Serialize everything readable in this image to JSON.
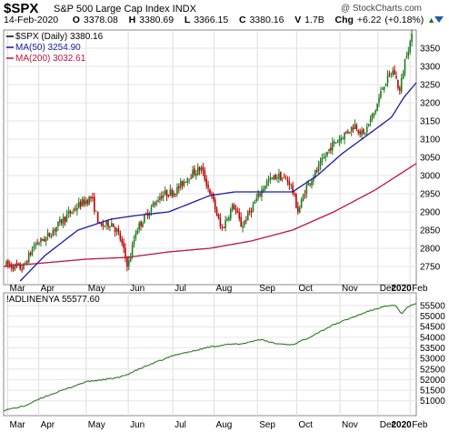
{
  "header": {
    "symbol": "$SPX",
    "name": "S&P 500 Large Cap Index  INDX",
    "watermark": "@ StockCharts.com",
    "date": "14-Feb-2020",
    "o_label": "O",
    "o_value": "3378.08",
    "h_label": "H",
    "h_value": "3380.69",
    "l_label": "L",
    "l_value": "3366.15",
    "c_label": "C",
    "c_value": "3380.16",
    "v_label": "V",
    "v_value": "1.7B",
    "chg_label": "Chg",
    "chg_value": "+6.22 (+0.18%)",
    "chg_arrow": "▲",
    "scroll_icon": "chevron-down-icon",
    "accent": "#1b5fa8"
  },
  "chart_data": [
    {
      "type": "candlestick",
      "legend": [
        {
          "label": "$SPX (Daily) 3380.16",
          "color": "#000000"
        },
        {
          "label": "MA(50) 3254.90",
          "color": "#1a1aa6"
        },
        {
          "label": "MA(200) 3032.61",
          "color": "#c0143c"
        }
      ],
      "ylim": [
        2700,
        3400
      ],
      "y_ticks": [
        "2750",
        "2800",
        "2850",
        "2900",
        "2950",
        "3000",
        "3050",
        "3100",
        "3150",
        "3200",
        "3250",
        "3300",
        "3350"
      ],
      "up_color": "#1f7a1f",
      "down_color": "#c00000",
      "x_months": [
        {
          "label": "Mar",
          "t": 0.01,
          "bold": false
        },
        {
          "label": "Apr",
          "t": 0.085,
          "bold": false
        },
        {
          "label": "May",
          "t": 0.2,
          "bold": false
        },
        {
          "label": "Jun",
          "t": 0.302,
          "bold": false
        },
        {
          "label": "Jul",
          "t": 0.41,
          "bold": false
        },
        {
          "label": "Aug",
          "t": 0.51,
          "bold": false
        },
        {
          "label": "Sep",
          "t": 0.615,
          "bold": false
        },
        {
          "label": "Oct",
          "t": 0.71,
          "bold": false
        },
        {
          "label": "Nov",
          "t": 0.815,
          "bold": false
        },
        {
          "label": "Dec",
          "t": 0.907,
          "bold": false
        },
        {
          "label": "2020",
          "t": 0.935,
          "bold": true
        },
        {
          "label": "Feb",
          "t": 0.985,
          "bold": false
        }
      ],
      "anchors": [
        {
          "t": 0.0,
          "v": 2755
        },
        {
          "t": 0.04,
          "v": 2745
        },
        {
          "t": 0.07,
          "v": 2810
        },
        {
          "t": 0.1,
          "v": 2830
        },
        {
          "t": 0.14,
          "v": 2880
        },
        {
          "t": 0.18,
          "v": 2920
        },
        {
          "t": 0.21,
          "v": 2940
        },
        {
          "t": 0.23,
          "v": 2860
        },
        {
          "t": 0.26,
          "v": 2870
        },
        {
          "t": 0.28,
          "v": 2830
        },
        {
          "t": 0.3,
          "v": 2750
        },
        {
          "t": 0.32,
          "v": 2850
        },
        {
          "t": 0.35,
          "v": 2900
        },
        {
          "t": 0.38,
          "v": 2945
        },
        {
          "t": 0.42,
          "v": 2960
        },
        {
          "t": 0.45,
          "v": 3000
        },
        {
          "t": 0.48,
          "v": 3020
        },
        {
          "t": 0.51,
          "v": 2930
        },
        {
          "t": 0.53,
          "v": 2850
        },
        {
          "t": 0.56,
          "v": 2920
        },
        {
          "t": 0.58,
          "v": 2860
        },
        {
          "t": 0.61,
          "v": 2920
        },
        {
          "t": 0.64,
          "v": 2980
        },
        {
          "t": 0.67,
          "v": 3000
        },
        {
          "t": 0.7,
          "v": 2980
        },
        {
          "t": 0.72,
          "v": 2900
        },
        {
          "t": 0.74,
          "v": 2970
        },
        {
          "t": 0.77,
          "v": 3020
        },
        {
          "t": 0.8,
          "v": 3080
        },
        {
          "t": 0.83,
          "v": 3110
        },
        {
          "t": 0.86,
          "v": 3140
        },
        {
          "t": 0.88,
          "v": 3110
        },
        {
          "t": 0.91,
          "v": 3180
        },
        {
          "t": 0.93,
          "v": 3250
        },
        {
          "t": 0.955,
          "v": 3290
        },
        {
          "t": 0.97,
          "v": 3230
        },
        {
          "t": 0.985,
          "v": 3330
        },
        {
          "t": 1.0,
          "v": 3380
        }
      ],
      "ma50": [
        {
          "t": 0.04,
          "v": 2710
        },
        {
          "t": 0.1,
          "v": 2780
        },
        {
          "t": 0.18,
          "v": 2850
        },
        {
          "t": 0.26,
          "v": 2880
        },
        {
          "t": 0.32,
          "v": 2890
        },
        {
          "t": 0.4,
          "v": 2900
        },
        {
          "t": 0.5,
          "v": 2945
        },
        {
          "t": 0.56,
          "v": 2955
        },
        {
          "t": 0.62,
          "v": 2955
        },
        {
          "t": 0.7,
          "v": 2955
        },
        {
          "t": 0.76,
          "v": 3000
        },
        {
          "t": 0.82,
          "v": 3060
        },
        {
          "t": 0.88,
          "v": 3110
        },
        {
          "t": 0.94,
          "v": 3160
        },
        {
          "t": 0.97,
          "v": 3215
        },
        {
          "t": 1.0,
          "v": 3255
        }
      ],
      "ma200": [
        {
          "t": 0.0,
          "v": 2750
        },
        {
          "t": 0.1,
          "v": 2760
        },
        {
          "t": 0.2,
          "v": 2770
        },
        {
          "t": 0.3,
          "v": 2775
        },
        {
          "t": 0.4,
          "v": 2790
        },
        {
          "t": 0.5,
          "v": 2800
        },
        {
          "t": 0.6,
          "v": 2820
        },
        {
          "t": 0.7,
          "v": 2850
        },
        {
          "t": 0.8,
          "v": 2900
        },
        {
          "t": 0.9,
          "v": 2960
        },
        {
          "t": 1.0,
          "v": 3033
        }
      ],
      "n_bars": 236
    },
    {
      "type": "line",
      "legend": [
        {
          "label": "!ADLINENYA 55577.60",
          "color": "#000000"
        }
      ],
      "ylim": [
        50300,
        56100
      ],
      "y_ticks": [
        "51000",
        "51500",
        "52000",
        "52500",
        "53000",
        "53500",
        "54000",
        "54500",
        "55000",
        "55500"
      ],
      "line_color": "#2a7a1f",
      "anchors": [
        {
          "t": 0.0,
          "v": 50550
        },
        {
          "t": 0.05,
          "v": 50750
        },
        {
          "t": 0.1,
          "v": 51200
        },
        {
          "t": 0.15,
          "v": 51550
        },
        {
          "t": 0.2,
          "v": 51900
        },
        {
          "t": 0.24,
          "v": 52000
        },
        {
          "t": 0.28,
          "v": 52100
        },
        {
          "t": 0.3,
          "v": 52250
        },
        {
          "t": 0.34,
          "v": 52600
        },
        {
          "t": 0.38,
          "v": 52900
        },
        {
          "t": 0.42,
          "v": 53200
        },
        {
          "t": 0.46,
          "v": 53350
        },
        {
          "t": 0.5,
          "v": 53550
        },
        {
          "t": 0.54,
          "v": 53650
        },
        {
          "t": 0.58,
          "v": 53700
        },
        {
          "t": 0.62,
          "v": 53900
        },
        {
          "t": 0.66,
          "v": 53700
        },
        {
          "t": 0.7,
          "v": 53650
        },
        {
          "t": 0.73,
          "v": 53900
        },
        {
          "t": 0.76,
          "v": 54200
        },
        {
          "t": 0.8,
          "v": 54600
        },
        {
          "t": 0.84,
          "v": 54900
        },
        {
          "t": 0.88,
          "v": 55200
        },
        {
          "t": 0.92,
          "v": 55450
        },
        {
          "t": 0.95,
          "v": 55500
        },
        {
          "t": 0.965,
          "v": 55100
        },
        {
          "t": 0.98,
          "v": 55450
        },
        {
          "t": 1.0,
          "v": 55580
        }
      ],
      "n_points": 236
    }
  ]
}
